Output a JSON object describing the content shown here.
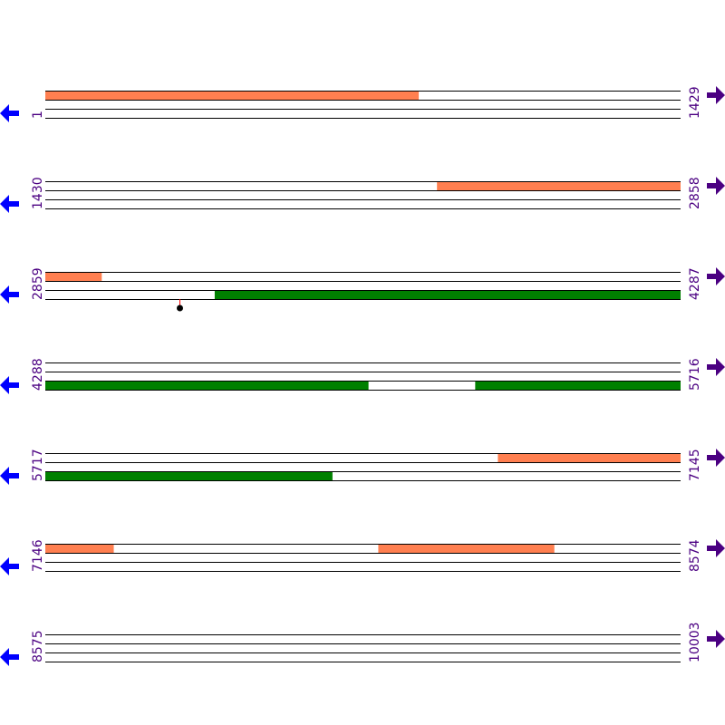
{
  "sequence_length": 10003,
  "colors": {
    "forward_feature": "#ff7f50",
    "reverse_feature": "#008000",
    "line": "#000000",
    "left_arrow": "#0000ff",
    "right_arrow": "#4b0082",
    "label": "#4b0082",
    "marker_stem": "#ff0000",
    "marker_head": "#000000"
  },
  "icons": {
    "left": "arrow-left-icon",
    "right": "arrow-right-icon"
  },
  "rows": [
    {
      "start": "1",
      "end": "1429"
    },
    {
      "start": "1430",
      "end": "2858"
    },
    {
      "start": "2859",
      "end": "4287"
    },
    {
      "start": "4288",
      "end": "5716"
    },
    {
      "start": "5717",
      "end": "7145"
    },
    {
      "start": "7146",
      "end": "8574"
    },
    {
      "start": "8575",
      "end": "10003"
    }
  ],
  "features": [
    {
      "track": "forward",
      "start": 1,
      "end": 840
    },
    {
      "track": "forward",
      "start": 2311,
      "end": 2985
    },
    {
      "track": "reverse",
      "start": 3240,
      "end": 5014
    },
    {
      "track": "reverse",
      "start": 5255,
      "end": 6362
    },
    {
      "track": "forward",
      "start": 6735,
      "end": 7299
    },
    {
      "track": "forward",
      "start": 7895,
      "end": 8290
    }
  ],
  "markers": [
    {
      "position": 3161
    }
  ]
}
